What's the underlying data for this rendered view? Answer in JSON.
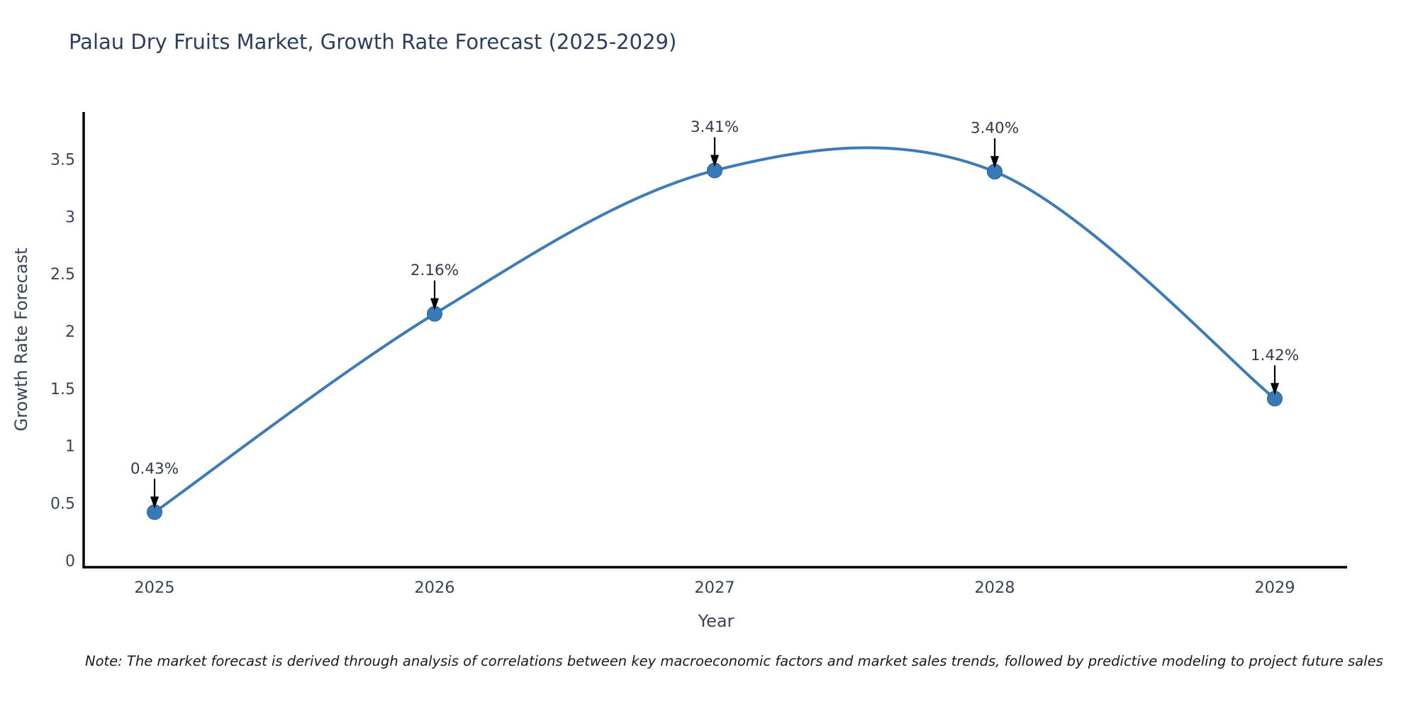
{
  "page": {
    "background": "#ffffff"
  },
  "chart_data": {
    "type": "line",
    "title": "Palau Dry Fruits Market, Growth Rate Forecast (2025-2029)",
    "xlabel": "Year",
    "ylabel": "Growth Rate Forecast",
    "categories": [
      "2025",
      "2026",
      "2027",
      "2028",
      "2029"
    ],
    "values": [
      0.43,
      2.16,
      3.41,
      3.4,
      1.42
    ],
    "point_labels": [
      "0.43%",
      "2.16%",
      "3.41%",
      "3.40%",
      "1.42%"
    ],
    "y_ticks": [
      "0",
      "0.5",
      "1",
      "1.5",
      "2",
      "2.5",
      "3",
      "3.5"
    ],
    "y_tick_values": [
      0,
      0.5,
      1,
      1.5,
      2,
      2.5,
      3,
      3.5
    ],
    "ylim": [
      -0.05,
      3.92
    ],
    "line_shape": "spline",
    "grid": false,
    "legend": false,
    "annotations_have_arrows": true,
    "colors": {
      "line": "#3d7ab8",
      "marker": "#3a79b8",
      "marker_edge": "#2b5f94",
      "arrow": "#000000",
      "axis": "#000000",
      "title_text": "#2a3f5f",
      "tick_text": "#3a4458",
      "annotation_text": "#2f3b4c",
      "note_text": "#1a1a1a"
    }
  },
  "note": {
    "text": "Note: The market forecast is derived through analysis of correlations between key macroeconomic factors and market sales trends, followed by predictive modeling to project future sales"
  }
}
